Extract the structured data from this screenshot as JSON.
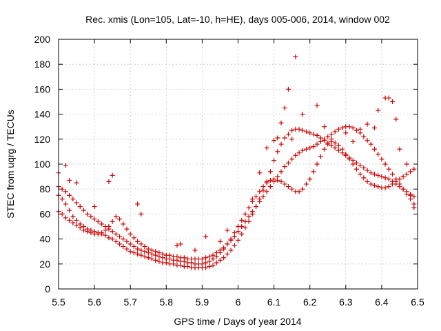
{
  "chart_data": {
    "type": "scatter",
    "title": "Rec. xmis (Lon=105, Lat=-10, h=HE), days 005-006, 2014, window 002",
    "xlabel": "GPS time / Days of year 2014",
    "ylabel": "STEC from uqrg / TECUs",
    "xlim": [
      5.5,
      6.5
    ],
    "ylim": [
      0,
      200
    ],
    "x_ticks": [
      "5.5",
      "5.6",
      "5.7",
      "5.8",
      "5.9",
      "6",
      "6.1",
      "6.2",
      "6.3",
      "6.4",
      "6.5"
    ],
    "y_ticks": [
      "0",
      "20",
      "40",
      "60",
      "80",
      "100",
      "120",
      "140",
      "160",
      "180",
      "200"
    ],
    "grid": true,
    "marker": "+",
    "color": "#cc0000",
    "series": [
      {
        "x": [
          5.5,
          5.51,
          5.52,
          5.53,
          5.54,
          5.55,
          5.56,
          5.57,
          5.58,
          5.59,
          5.6,
          5.61,
          5.62,
          5.63,
          5.64,
          5.65,
          5.66,
          5.67,
          5.68,
          5.69,
          5.7,
          5.71,
          5.72,
          5.73,
          5.74,
          5.75,
          5.76,
          5.77,
          5.78,
          5.79,
          5.8,
          5.81,
          5.82,
          5.83,
          5.84,
          5.85,
          5.86,
          5.87,
          5.88,
          5.89,
          5.9,
          5.91,
          5.92,
          5.93,
          5.94,
          5.95,
          5.96,
          5.97,
          5.98,
          5.99,
          6.0,
          6.01,
          6.02,
          6.03,
          6.04,
          6.05,
          6.06,
          6.07,
          6.08,
          6.09,
          6.1,
          6.11,
          6.12,
          6.13,
          6.14,
          6.15,
          6.16,
          6.17,
          6.18,
          6.19,
          6.2,
          6.21,
          6.22,
          6.23,
          6.24,
          6.25,
          6.26,
          6.27,
          6.28,
          6.29,
          6.3,
          6.31,
          6.32,
          6.33,
          6.34,
          6.35,
          6.36,
          6.37,
          6.38,
          6.39,
          6.4,
          6.41,
          6.42,
          6.43,
          6.44,
          6.45,
          6.46,
          6.47,
          6.48,
          6.49
        ],
        "y": [
          75,
          72,
          68,
          63,
          58,
          55,
          52,
          50,
          48,
          47,
          46,
          45,
          44,
          43,
          41,
          40,
          38,
          36,
          34,
          32,
          30,
          29,
          28,
          27,
          26,
          25,
          24,
          23,
          22,
          21,
          21,
          20,
          20,
          19,
          19,
          18,
          18,
          17,
          17,
          17,
          17,
          17,
          18,
          19,
          21,
          23,
          25,
          28,
          31,
          35,
          39,
          44,
          49,
          54,
          60,
          66,
          72,
          79,
          86,
          94,
          103,
          110,
          116,
          121,
          124,
          127,
          128,
          128,
          127,
          126,
          125,
          124,
          123,
          121,
          119,
          117,
          115,
          113,
          111,
          109,
          107,
          105,
          103,
          101,
          99,
          97,
          95,
          93,
          92,
          91,
          90,
          89,
          88,
          86,
          84,
          82,
          80,
          78,
          76,
          74
        ]
      },
      {
        "x": [
          5.5,
          5.51,
          5.52,
          5.53,
          5.54,
          5.55,
          5.56,
          5.57,
          5.58,
          5.59,
          5.6,
          5.61,
          5.62,
          5.63,
          5.64,
          5.65,
          5.66,
          5.67,
          5.68,
          5.69,
          5.7,
          5.71,
          5.72,
          5.73,
          5.74,
          5.75,
          5.76,
          5.77,
          5.78,
          5.79,
          5.8,
          5.81,
          5.82,
          5.83,
          5.84,
          5.85,
          5.86,
          5.87,
          5.88,
          5.89,
          5.9,
          5.91,
          5.92,
          5.93,
          5.94,
          5.95,
          5.96,
          5.97,
          5.98,
          5.99,
          6.0,
          6.01,
          6.02,
          6.03,
          6.04,
          6.05,
          6.06,
          6.07,
          6.08,
          6.09,
          6.1,
          6.11,
          6.12,
          6.13,
          6.14,
          6.15,
          6.16,
          6.17,
          6.18,
          6.19,
          6.2,
          6.21,
          6.22,
          6.23,
          6.24,
          6.25,
          6.26,
          6.27,
          6.28,
          6.29,
          6.3,
          6.31,
          6.32,
          6.33,
          6.34,
          6.35,
          6.36,
          6.37,
          6.38,
          6.39,
          6.4,
          6.41,
          6.42,
          6.43,
          6.44,
          6.45,
          6.46,
          6.47,
          6.48,
          6.49
        ],
        "y": [
          82,
          80,
          78,
          75,
          72,
          69,
          66,
          63,
          60,
          58,
          56,
          54,
          52,
          50,
          48,
          46,
          44,
          42,
          40,
          38,
          36,
          34,
          32,
          31,
          30,
          29,
          28,
          27,
          26,
          25,
          24,
          24,
          23,
          23,
          22,
          22,
          21,
          21,
          20,
          20,
          20,
          21,
          22,
          24,
          26,
          29,
          32,
          36,
          40,
          45,
          50,
          55,
          60,
          65,
          70,
          74,
          78,
          82,
          85,
          87,
          88,
          87,
          86,
          84,
          82,
          80,
          78,
          78,
          80,
          84,
          88,
          94,
          100,
          106,
          112,
          116,
          118,
          117,
          115,
          112,
          108,
          104,
          100,
          96,
          92,
          89,
          86,
          84,
          83,
          82,
          81,
          81,
          82,
          84,
          86,
          88,
          90,
          92,
          94,
          96
        ]
      },
      {
        "x": [
          5.5,
          5.51,
          5.52,
          5.53,
          5.54,
          5.55,
          5.56,
          5.57,
          5.58,
          5.59,
          5.6,
          5.61,
          5.62,
          5.63,
          5.64,
          5.65,
          5.66,
          5.67,
          5.68,
          5.69,
          5.7,
          5.71,
          5.72,
          5.73,
          5.74,
          5.75,
          5.76,
          5.77,
          5.78,
          5.79,
          5.8,
          5.81,
          5.82,
          5.83,
          5.84,
          5.85,
          5.86,
          5.87,
          5.88,
          5.89,
          5.9,
          5.91,
          5.92,
          5.93,
          5.94,
          5.95,
          5.96,
          5.97,
          5.98,
          5.99,
          6.0,
          6.01,
          6.02,
          6.03,
          6.04,
          6.05,
          6.06,
          6.07,
          6.08,
          6.09,
          6.1,
          6.11,
          6.12,
          6.13,
          6.14,
          6.15,
          6.16,
          6.17,
          6.18,
          6.19,
          6.2,
          6.21,
          6.22,
          6.23,
          6.24,
          6.25,
          6.26,
          6.27,
          6.28,
          6.29,
          6.3,
          6.31,
          6.32,
          6.33,
          6.34,
          6.35,
          6.36,
          6.37,
          6.38,
          6.39,
          6.4,
          6.41,
          6.42,
          6.43,
          6.44,
          6.45,
          6.46,
          6.47,
          6.48,
          6.49
        ],
        "y": [
          62,
          60,
          57,
          55,
          53,
          51,
          49,
          47,
          46,
          45,
          44,
          44,
          45,
          47,
          50,
          54,
          58,
          56,
          52,
          48,
          44,
          41,
          38,
          36,
          34,
          32,
          31,
          30,
          29,
          28,
          27,
          27,
          26,
          26,
          25,
          25,
          24,
          24,
          24,
          24,
          24,
          25,
          26,
          27,
          29,
          31,
          33,
          36,
          39,
          42,
          46,
          50,
          54,
          58,
          62,
          66,
          70,
          74,
          78,
          82,
          86,
          90,
          94,
          98,
          101,
          104,
          107,
          109,
          111,
          112,
          113,
          114,
          116,
          118,
          120,
          122,
          124,
          126,
          128,
          129,
          130,
          130,
          129,
          127,
          125,
          122,
          119,
          116,
          112,
          108,
          104,
          100,
          96,
          92,
          88,
          84,
          80,
          76,
          72,
          68
        ]
      },
      {
        "x": [
          5.5,
          5.52,
          5.53,
          5.55,
          5.6,
          5.64,
          5.65,
          5.72,
          5.73,
          5.83,
          5.84,
          5.88,
          5.91,
          5.95,
          5.97,
          6.04,
          6.06,
          6.08,
          6.1,
          6.11,
          6.12,
          6.13,
          6.14,
          6.15,
          6.16,
          6.18,
          6.22,
          6.24,
          6.26,
          6.3,
          6.32,
          6.34,
          6.36,
          6.38,
          6.39,
          6.41,
          6.42,
          6.43,
          6.44,
          6.45,
          6.47,
          6.48,
          6.49
        ],
        "y": [
          93,
          99,
          87,
          85,
          66,
          86,
          91,
          68,
          60,
          35,
          36,
          31,
          42,
          38,
          47,
          72,
          93,
          113,
          119,
          121,
          133,
          145,
          160,
          120,
          186,
          140,
          147,
          130,
          120,
          125,
          118,
          128,
          132,
          129,
          143,
          153,
          153,
          150,
          136,
          112,
          100,
          75,
          65
        ]
      }
    ]
  }
}
